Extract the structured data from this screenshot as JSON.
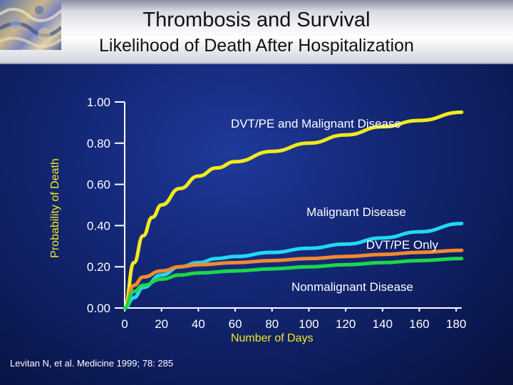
{
  "slide": {
    "title": "Thrombosis and Survival",
    "subtitle": "Likelihood of Death After Hospitalization",
    "citation": "Levitan N, et al. Medicine 1999; 78: 285"
  },
  "chart_data": {
    "type": "line",
    "title": "Thrombosis and Survival",
    "subtitle": "Likelihood of Death After Hospitalization",
    "xlabel": "Number of Days",
    "ylabel": "Probability of Death",
    "xlim": [
      0,
      183
    ],
    "ylim": [
      0,
      1.0
    ],
    "x_ticks": [
      0,
      20,
      40,
      60,
      80,
      100,
      120,
      140,
      160,
      180
    ],
    "x_tick_labels": [
      "0",
      "20",
      "40",
      "60",
      "80",
      "100",
      "120",
      "140",
      "160",
      "180"
    ],
    "y_ticks": [
      0,
      0.2,
      0.4,
      0.6,
      0.8,
      1.0
    ],
    "y_tick_labels": [
      "0.00",
      "0.20",
      "0.40",
      "0.60",
      "0.80",
      "1.00"
    ],
    "grid": false,
    "series": [
      {
        "name": "DVT/PE and Malignant Disease",
        "color": "#f2ea1c",
        "x": [
          0,
          5,
          10,
          15,
          20,
          30,
          40,
          50,
          60,
          80,
          100,
          120,
          140,
          160,
          183
        ],
        "y": [
          0,
          0.22,
          0.35,
          0.44,
          0.5,
          0.58,
          0.64,
          0.68,
          0.71,
          0.76,
          0.8,
          0.84,
          0.88,
          0.91,
          0.95
        ]
      },
      {
        "name": "Malignant Disease",
        "color": "#22d8f2",
        "x": [
          0,
          5,
          10,
          20,
          30,
          40,
          50,
          60,
          80,
          100,
          120,
          140,
          160,
          183
        ],
        "y": [
          0,
          0.05,
          0.1,
          0.16,
          0.2,
          0.22,
          0.24,
          0.25,
          0.27,
          0.29,
          0.31,
          0.34,
          0.37,
          0.41
        ]
      },
      {
        "name": "DVT/PE Only",
        "color": "#f08a30",
        "x": [
          0,
          5,
          10,
          20,
          30,
          40,
          60,
          80,
          100,
          120,
          140,
          160,
          183
        ],
        "y": [
          0,
          0.11,
          0.15,
          0.18,
          0.2,
          0.21,
          0.22,
          0.23,
          0.24,
          0.25,
          0.26,
          0.27,
          0.28
        ]
      },
      {
        "name": "Nonmalignant Disease",
        "color": "#1bd84a",
        "x": [
          0,
          5,
          10,
          20,
          30,
          40,
          60,
          80,
          100,
          120,
          140,
          160,
          183
        ],
        "y": [
          0,
          0.08,
          0.11,
          0.14,
          0.16,
          0.17,
          0.18,
          0.19,
          0.2,
          0.21,
          0.22,
          0.23,
          0.24
        ]
      }
    ],
    "annotations": [
      {
        "text": "DVT/PE and Malignant Disease",
        "series": "DVT/PE and Malignant Disease"
      },
      {
        "text": "Malignant Disease",
        "series": "Malignant Disease"
      },
      {
        "text": "DVT/PE Only",
        "series": "DVT/PE Only"
      },
      {
        "text": "Nonmalignant Disease",
        "series": "Nonmalignant Disease"
      }
    ]
  }
}
